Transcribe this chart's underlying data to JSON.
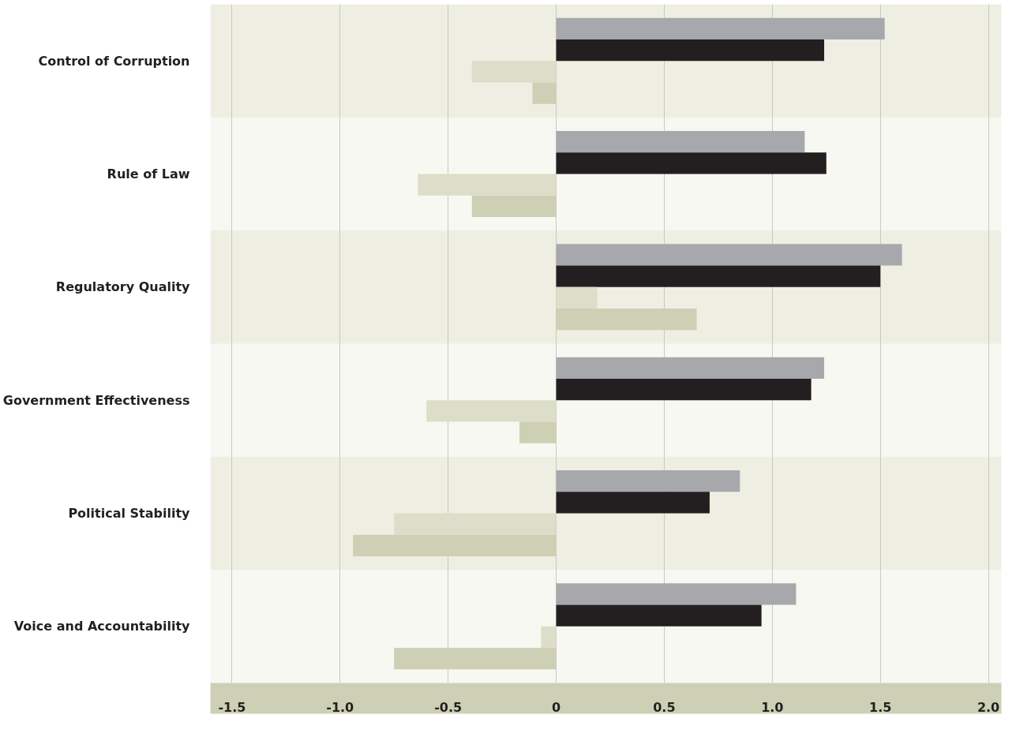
{
  "chart_data": {
    "type": "bar",
    "orientation": "horizontal",
    "categories": [
      "Control of Corruption",
      "Rule of Law",
      "Regulatory Quality",
      "Government Effectiveness",
      "Political Stability",
      "Voice and Accountability"
    ],
    "series": [
      {
        "color": "#a7a8ac",
        "values": [
          1.52,
          1.15,
          1.6,
          1.24,
          0.85,
          1.11
        ]
      },
      {
        "color": "#231f20",
        "values": [
          1.24,
          1.25,
          1.5,
          1.18,
          0.71,
          0.95
        ]
      },
      {
        "color": "#dcdec9",
        "values": [
          -0.39,
          -0.64,
          0.19,
          -0.6,
          -0.75,
          -0.07
        ]
      },
      {
        "color": "#cdd0b4",
        "values": [
          -0.11,
          -0.39,
          0.65,
          -0.17,
          -0.94,
          -0.75
        ]
      }
    ],
    "xlim": [
      -1.6,
      2.06
    ],
    "xticks": [
      -1.5,
      {
        "value": -1.0,
        "label": "-1.0"
      },
      -0.5,
      0,
      0.5,
      {
        "value": 1.0,
        "label": "1.0"
      },
      1.5,
      {
        "value": 2.0,
        "label": "2.0"
      }
    ],
    "grid": "x"
  }
}
